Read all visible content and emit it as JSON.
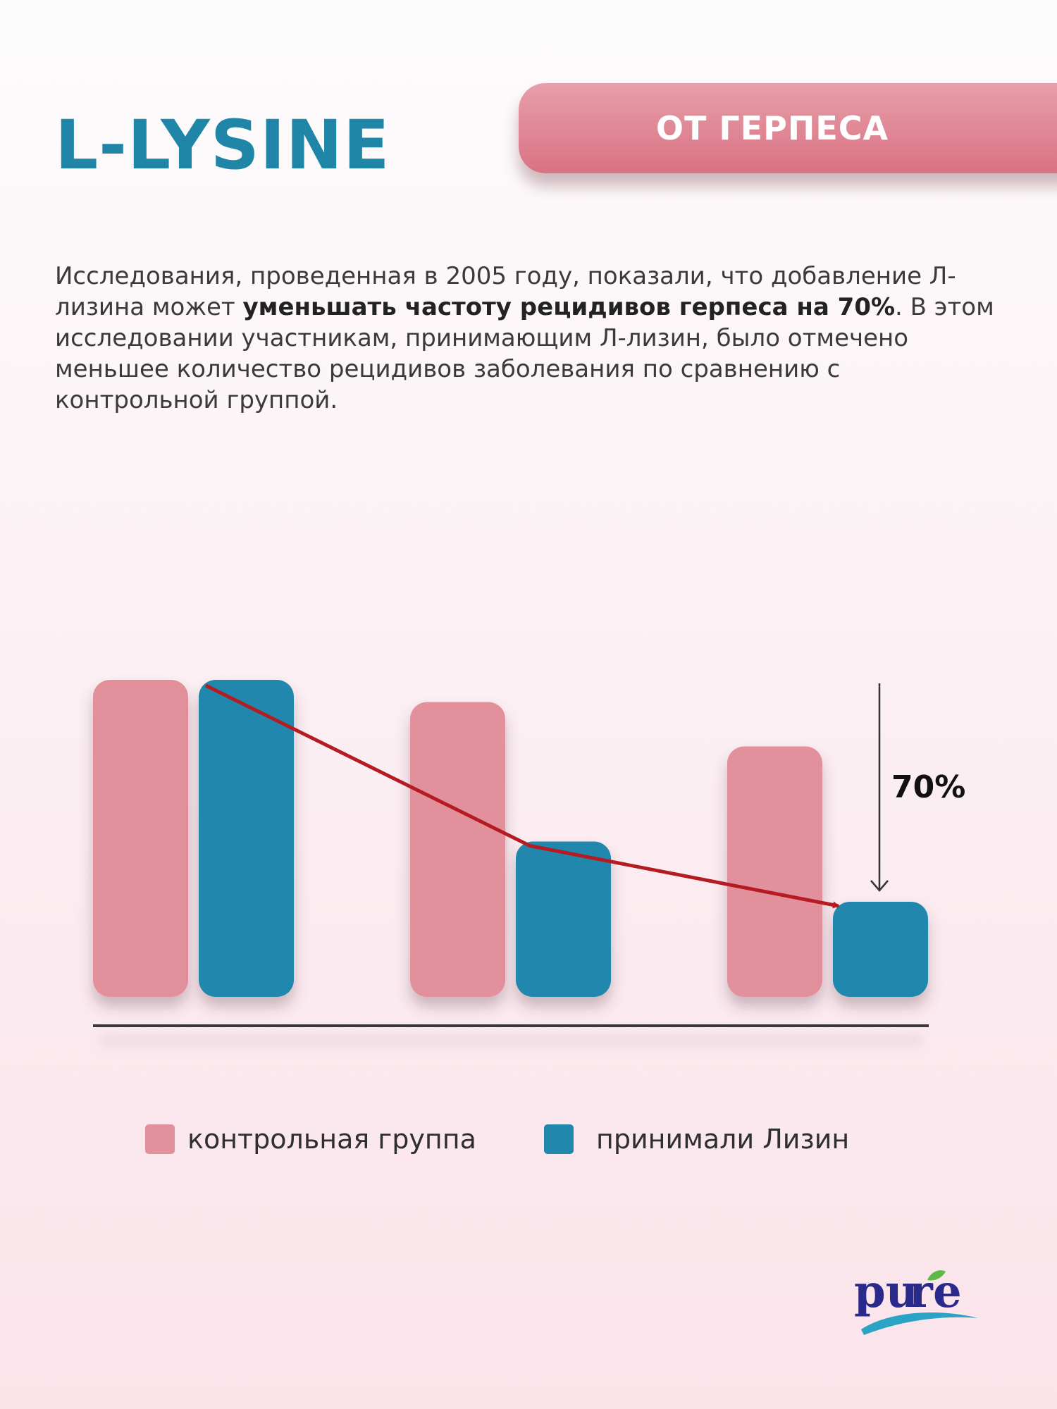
{
  "header": {
    "title": "L-LYSINE",
    "badge": "ОТ ГЕРПЕСА"
  },
  "description": {
    "part1": "Исследования, проведенная в 2005 году, показали, что добавление Л-лизина может ",
    "bold": "уменьшать частоту рецидивов герпеса на 70%",
    "part2": ". В этом исследовании участникам, принимающим Л-лизин, было отмечено меньшее количество рецидивов заболевания по сравнению с контрольной группой."
  },
  "colors": {
    "control": "#e2909c",
    "lysine": "#2287ac",
    "trend_arrow": "#b51b22",
    "title": "#1f86a8"
  },
  "chart_data": {
    "type": "bar",
    "categories": [
      "",
      "",
      ""
    ],
    "series": [
      {
        "name": "контрольная группа",
        "values": [
          100,
          93,
          79
        ]
      },
      {
        "name": "принимали Лизин",
        "values": [
          100,
          49,
          30
        ]
      }
    ],
    "ylim": [
      0,
      100
    ],
    "annotation": "70%",
    "grid": false,
    "legend_position": "bottom"
  },
  "legend": {
    "control_label": "контрольная группа",
    "lysine_label": "принимали Лизин"
  },
  "brand": {
    "logo_text": "pure",
    "logo_icon": "leaf-icon"
  }
}
